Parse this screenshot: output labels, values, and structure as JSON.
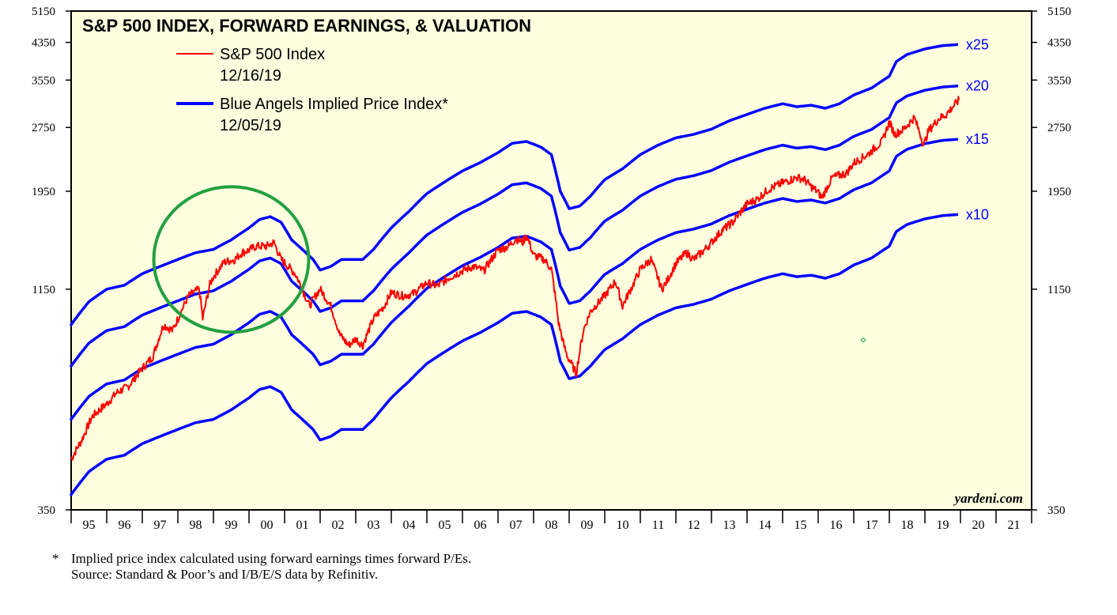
{
  "chart_data": {
    "type": "line",
    "title": "S&P 500 INDEX, FORWARD EARNINGS, & VALUATION",
    "y_scale": "log",
    "ylim": [
      350,
      5150
    ],
    "y_ticks": [
      5150,
      4350,
      3550,
      2750,
      1950,
      1150,
      350
    ],
    "y_tick_labels": [
      "5150",
      "4350",
      "3550",
      "2750",
      "1950",
      "1150",
      "350"
    ],
    "x_range": [
      1995,
      2022
    ],
    "x_tick_labels": [
      "95",
      "96",
      "97",
      "98",
      "99",
      "00",
      "01",
      "02",
      "03",
      "04",
      "05",
      "06",
      "07",
      "08",
      "09",
      "10",
      "11",
      "12",
      "13",
      "14",
      "15",
      "16",
      "17",
      "18",
      "19",
      "20",
      "21"
    ],
    "colors": {
      "sp500": "#ff0000",
      "implied": "#0000ff",
      "circle": "#22a040",
      "background": "#ffffe0"
    },
    "legend": [
      {
        "label": "S&P 500 Index",
        "date": "12/16/19",
        "color": "#ff0000"
      },
      {
        "label": "Blue Angels Implied Price Index*",
        "date": "12/05/19",
        "color": "#0000ff"
      }
    ],
    "forward_earnings": {
      "x": [
        1995.0,
        1995.5,
        1996.0,
        1996.5,
        1997.0,
        1997.5,
        1998.0,
        1998.5,
        1999.0,
        1999.5,
        2000.0,
        2000.3,
        2000.6,
        2000.9,
        2001.2,
        2001.5,
        2001.8,
        2002.0,
        2002.3,
        2002.6,
        2002.9,
        2003.2,
        2003.5,
        2004.0,
        2004.5,
        2005.0,
        2005.5,
        2006.0,
        2006.5,
        2007.0,
        2007.4,
        2007.8,
        2008.2,
        2008.5,
        2008.75,
        2009.0,
        2009.3,
        2009.6,
        2010.0,
        2010.5,
        2011.0,
        2011.5,
        2012.0,
        2012.5,
        2013.0,
        2013.5,
        2014.0,
        2014.5,
        2015.0,
        2015.4,
        2015.8,
        2016.2,
        2016.6,
        2017.0,
        2017.5,
        2018.0,
        2018.2,
        2018.5,
        2019.0,
        2019.5,
        2019.93
      ],
      "values": [
        38,
        43,
        46,
        47,
        50,
        52,
        54,
        56,
        57,
        60,
        64,
        67,
        68,
        66,
        60,
        57,
        54,
        51,
        52,
        54,
        54,
        54,
        57,
        64,
        70,
        77,
        82,
        87,
        91,
        96,
        101,
        102,
        99,
        95,
        78,
        71,
        72,
        76,
        83,
        88,
        95,
        100,
        104,
        106,
        109,
        114,
        118,
        122,
        125,
        123,
        124,
        122,
        125,
        131,
        136,
        145,
        157,
        163,
        168,
        171,
        172
      ]
    },
    "multiples": [
      {
        "name": "x10",
        "pe": 10
      },
      {
        "name": "x15",
        "pe": 15
      },
      {
        "name": "x20",
        "pe": 20
      },
      {
        "name": "x25",
        "pe": 25
      }
    ],
    "sp500": {
      "x": [
        1995.0,
        1995.3,
        1995.6,
        1996.0,
        1996.3,
        1996.6,
        1997.0,
        1997.3,
        1997.6,
        1997.85,
        1998.0,
        1998.3,
        1998.6,
        1998.7,
        1998.9,
        1999.0,
        1999.3,
        1999.6,
        1999.8,
        2000.0,
        2000.2,
        2000.5,
        2000.7,
        2000.9,
        2001.1,
        2001.3,
        2001.7,
        2001.9,
        2002.0,
        2002.3,
        2002.55,
        2002.8,
        2003.0,
        2003.2,
        2003.5,
        2003.8,
        2004.0,
        2004.3,
        2004.6,
        2005.0,
        2005.3,
        2005.6,
        2006.0,
        2006.3,
        2006.6,
        2007.0,
        2007.3,
        2007.5,
        2007.7,
        2007.8,
        2008.0,
        2008.3,
        2008.5,
        2008.7,
        2008.85,
        2008.95,
        2009.2,
        2009.4,
        2009.6,
        2010.0,
        2010.3,
        2010.5,
        2010.8,
        2011.0,
        2011.3,
        2011.6,
        2011.75,
        2012.0,
        2012.3,
        2012.5,
        2012.8,
        2013.0,
        2013.3,
        2013.6,
        2014.0,
        2014.3,
        2014.6,
        2015.0,
        2015.4,
        2015.6,
        2015.8,
        2016.0,
        2016.1,
        2016.4,
        2016.8,
        2017.0,
        2017.4,
        2017.8,
        2018.0,
        2018.15,
        2018.4,
        2018.7,
        2018.97,
        2019.1,
        2019.4,
        2019.6,
        2019.96
      ],
      "values": [
        460,
        510,
        580,
        620,
        660,
        680,
        750,
        800,
        950,
        920,
        980,
        1110,
        1150,
        980,
        1180,
        1230,
        1330,
        1350,
        1400,
        1420,
        1450,
        1450,
        1480,
        1350,
        1300,
        1250,
        1050,
        1120,
        1150,
        1050,
        900,
        850,
        880,
        850,
        980,
        1050,
        1130,
        1110,
        1120,
        1190,
        1170,
        1220,
        1270,
        1300,
        1270,
        1420,
        1450,
        1510,
        1480,
        1540,
        1380,
        1350,
        1280,
        960,
        850,
        800,
        730,
        920,
        1020,
        1110,
        1200,
        1050,
        1180,
        1280,
        1350,
        1150,
        1200,
        1320,
        1400,
        1350,
        1420,
        1480,
        1580,
        1650,
        1820,
        1870,
        1970,
        2040,
        2100,
        2080,
        2000,
        1940,
        1880,
        2100,
        2150,
        2270,
        2380,
        2550,
        2830,
        2650,
        2720,
        2900,
        2500,
        2700,
        2890,
        2950,
        3190
      ]
    },
    "multiple_labels_year": 2019.93,
    "circle_annotation": {
      "center_year": 1999.5,
      "center_value": 1350
    },
    "credit": "yardeni.com",
    "footnote": [
      "Implied price index calculated using forward earnings times forward P/Es.",
      "Source: Standard & Poor’s and I/B/E/S data by Refinitiv."
    ],
    "footnote_marker": "*"
  }
}
